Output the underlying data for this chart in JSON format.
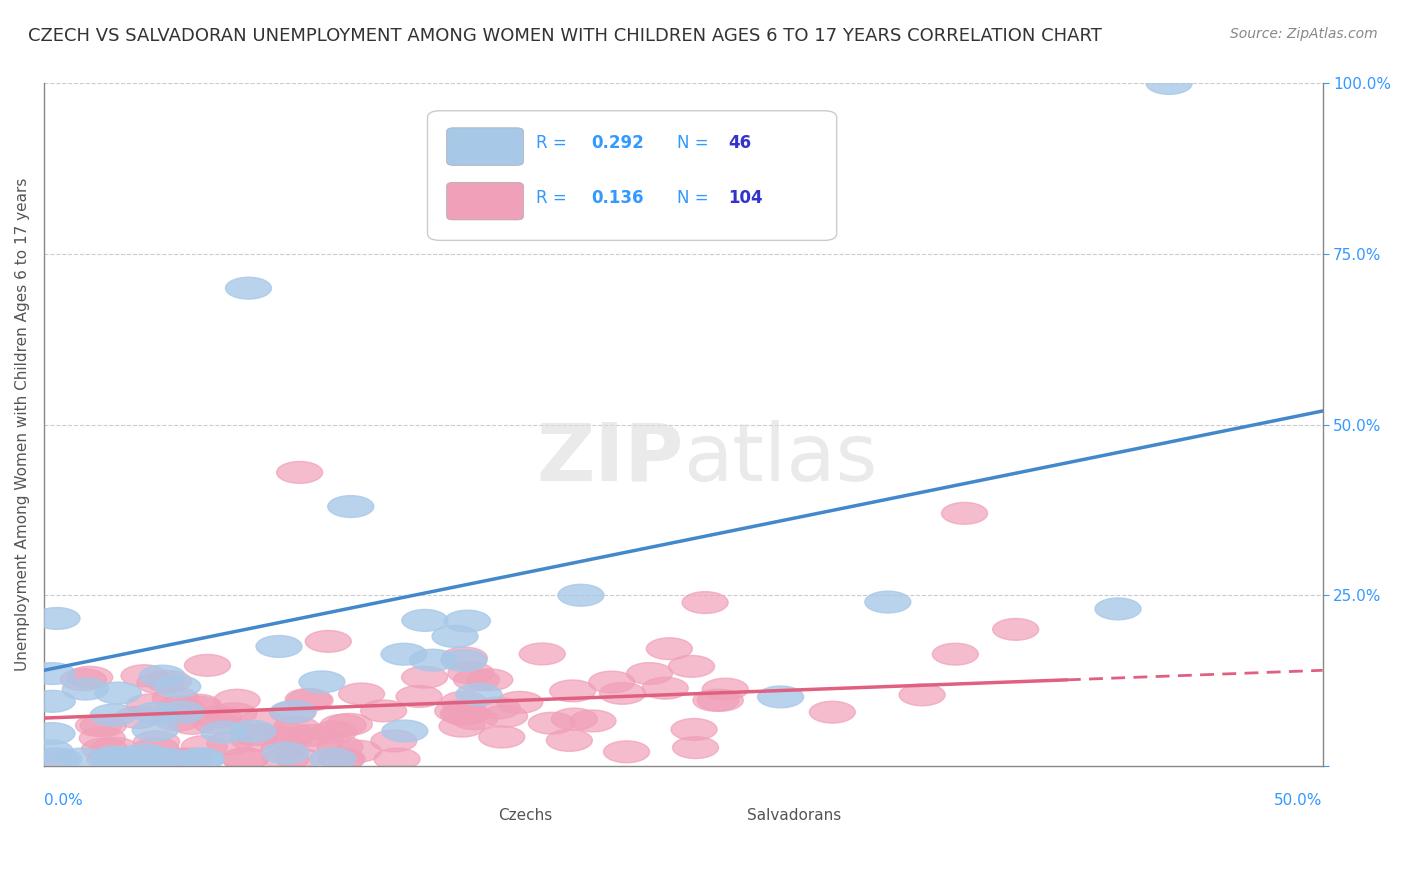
{
  "title": "CZECH VS SALVADORAN UNEMPLOYMENT AMONG WOMEN WITH CHILDREN AGES 6 TO 17 YEARS CORRELATION CHART",
  "source": "Source: ZipAtlas.com",
  "ylabel": "Unemployment Among Women with Children Ages 6 to 17 years",
  "czech_R": 0.292,
  "czech_N": 46,
  "salvadoran_R": 0.136,
  "salvadoran_N": 104,
  "czech_color": "#a8c8e8",
  "salvadoran_color": "#f0a0b8",
  "czech_line_color": "#4488cc",
  "salvadoran_line_color": "#e06080",
  "background_color": "#ffffff",
  "grid_color": "#cccccc",
  "title_color": "#333333",
  "legend_R_color": "#3399ff",
  "legend_N_color": "#3333cc"
}
